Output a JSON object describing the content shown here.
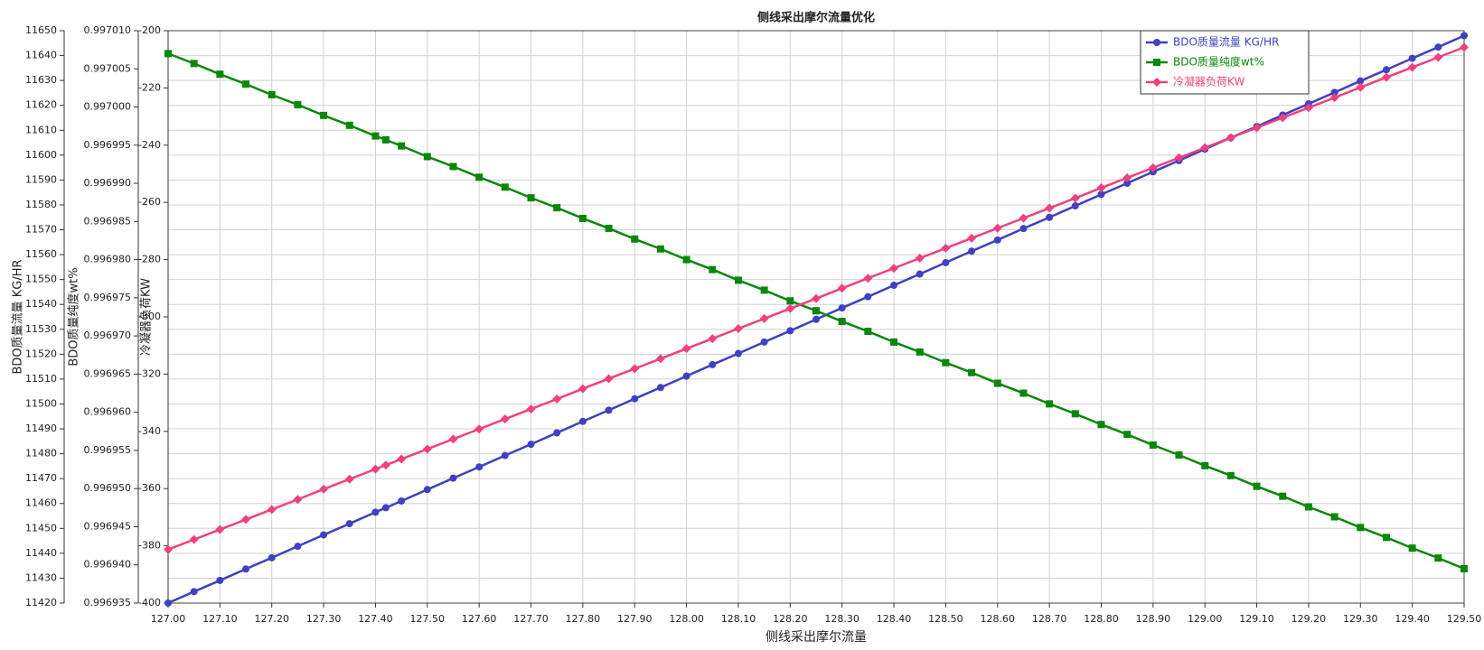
{
  "chart_data": {
    "type": "line",
    "title": "侧线采出摩尔流量优化",
    "xlabel": "侧线采出摩尔流量",
    "x": [
      127.0,
      127.05,
      127.1,
      127.15,
      127.2,
      127.25,
      127.3,
      127.35,
      127.4,
      127.42,
      127.45,
      127.5,
      127.55,
      127.6,
      127.65,
      127.7,
      127.75,
      127.8,
      127.85,
      127.9,
      127.95,
      128.0,
      128.05,
      128.1,
      128.15,
      128.2,
      128.25,
      128.3,
      128.35,
      128.4,
      128.45,
      128.5,
      128.55,
      128.6,
      128.65,
      128.7,
      128.75,
      128.8,
      128.85,
      128.9,
      128.95,
      129.0,
      129.05,
      129.1,
      129.15,
      129.2,
      129.25,
      129.3,
      129.35,
      129.4,
      129.45,
      129.5
    ],
    "series": [
      {
        "name": "BDO质量流量 KG/HR",
        "color": "#4040c0",
        "marker": "circle",
        "axis": "y",
        "axis_label": "BDO质量流量 KG/HR",
        "values": [
          11420.0,
          11424.6,
          11429.1,
          11433.7,
          11438.2,
          11442.8,
          11447.4,
          11451.9,
          11456.5,
          11458.3,
          11461.0,
          11465.6,
          11470.2,
          11474.7,
          11479.3,
          11483.8,
          11488.4,
          11493.0,
          11497.5,
          11502.1,
          11506.6,
          11511.2,
          11515.8,
          11520.3,
          11524.9,
          11529.4,
          11534.0,
          11538.6,
          11543.1,
          11547.7,
          11552.2,
          11556.8,
          11561.4,
          11565.9,
          11570.5,
          11575.0,
          11579.6,
          11584.2,
          11588.7,
          11593.3,
          11597.8,
          11602.4,
          11607.0,
          11611.5,
          11616.1,
          11620.6,
          11625.2,
          11629.8,
          11634.3,
          11638.9,
          11643.4,
          11648.0
        ]
      },
      {
        "name": "BDO质量纯度wt%",
        "color": "#0a870a",
        "marker": "square",
        "axis": "y2",
        "axis_label": "BDO质量纯度wt%",
        "values": [
          0.997007,
          0.9970057,
          0.9970043,
          0.997003,
          0.9970016,
          0.9970003,
          0.9969989,
          0.9969976,
          0.9969962,
          0.9969957,
          0.9969949,
          0.9969935,
          0.9969922,
          0.9969908,
          0.9969895,
          0.9969881,
          0.9969868,
          0.9969854,
          0.9969841,
          0.9969827,
          0.9969814,
          0.99698,
          0.9969787,
          0.9969773,
          0.996976,
          0.9969746,
          0.9969733,
          0.9969719,
          0.9969706,
          0.9969692,
          0.9969679,
          0.9969665,
          0.9969652,
          0.9969638,
          0.9969625,
          0.9969611,
          0.9969598,
          0.9969584,
          0.9969571,
          0.9969557,
          0.9969544,
          0.996953,
          0.9969517,
          0.9969503,
          0.996949,
          0.9969476,
          0.9969463,
          0.9969449,
          0.9969436,
          0.9969422,
          0.9969409,
          0.9969395
        ]
      },
      {
        "name": "冷凝器负荷KW",
        "color": "#f0407f",
        "marker": "diamond",
        "axis": "y3",
        "axis_label": "冷凝器负荷KW",
        "values": [
          -381.3,
          -377.8,
          -374.3,
          -370.8,
          -367.3,
          -363.8,
          -360.2,
          -356.7,
          -353.2,
          -351.8,
          -349.7,
          -346.2,
          -342.7,
          -339.2,
          -335.7,
          -332.2,
          -328.7,
          -325.1,
          -321.6,
          -318.1,
          -314.6,
          -311.1,
          -307.6,
          -304.1,
          -300.6,
          -297.1,
          -293.6,
          -290.0,
          -286.5,
          -283.0,
          -279.5,
          -276.0,
          -272.5,
          -269.0,
          -265.5,
          -262.0,
          -258.5,
          -254.9,
          -251.4,
          -247.9,
          -244.4,
          -240.9,
          -237.4,
          -233.9,
          -230.4,
          -226.9,
          -223.4,
          -219.8,
          -216.3,
          -212.8,
          -209.3,
          -205.8
        ]
      }
    ],
    "xlim": [
      127.0,
      129.5
    ],
    "xticks": [
      {
        "value": 127.0,
        "label": "127.00"
      },
      {
        "value": 127.1,
        "label": "127.10"
      },
      {
        "value": 127.2,
        "label": "127.20"
      },
      {
        "value": 127.3,
        "label": "127.30"
      },
      {
        "value": 127.4,
        "label": "127.40"
      },
      {
        "value": 127.5,
        "label": "127.50"
      },
      {
        "value": 127.6,
        "label": "127.60"
      },
      {
        "value": 127.7,
        "label": "127.70"
      },
      {
        "value": 127.8,
        "label": "127.80"
      },
      {
        "value": 127.9,
        "label": "127.90"
      },
      {
        "value": 128.0,
        "label": "128.00"
      },
      {
        "value": 128.1,
        "label": "128.10"
      },
      {
        "value": 128.2,
        "label": "128.20"
      },
      {
        "value": 128.3,
        "label": "128.30"
      },
      {
        "value": 128.4,
        "label": "128.40"
      },
      {
        "value": 128.5,
        "label": "128.50"
      },
      {
        "value": 128.6,
        "label": "128.60"
      },
      {
        "value": 128.7,
        "label": "128.70"
      },
      {
        "value": 128.8,
        "label": "128.80"
      },
      {
        "value": 128.9,
        "label": "128.90"
      },
      {
        "value": 129.0,
        "label": "129.00"
      },
      {
        "value": 129.1,
        "label": "129.10"
      },
      {
        "value": 129.2,
        "label": "129.20"
      },
      {
        "value": 129.3,
        "label": "129.30"
      },
      {
        "value": 129.4,
        "label": "129.40"
      },
      {
        "value": 129.5,
        "label": "129.50"
      }
    ],
    "ylim": [
      11420,
      11650
    ],
    "yticks": [
      11420,
      11430,
      11440,
      11450,
      11460,
      11470,
      11480,
      11490,
      11500,
      11510,
      11520,
      11530,
      11540,
      11550,
      11560,
      11570,
      11580,
      11590,
      11600,
      11610,
      11620,
      11630,
      11640,
      11650
    ],
    "y2lim": [
      0.996935,
      0.99701
    ],
    "y2ticks": [
      0.996935,
      {
        "value": 0.99694,
        "label": "0.996940"
      },
      0.996945,
      {
        "value": 0.99695,
        "label": "0.996950"
      },
      0.996955,
      {
        "value": 0.99696,
        "label": "0.996960"
      },
      0.996965,
      {
        "value": 0.99697,
        "label": "0.996970"
      },
      0.996975,
      {
        "value": 0.99698,
        "label": "0.996980"
      },
      0.996985,
      {
        "value": 0.99699,
        "label": "0.996990"
      },
      0.996995,
      {
        "value": 0.997,
        "label": "0.997000"
      },
      0.997005,
      {
        "value": 0.99701,
        "label": "0.997010"
      }
    ],
    "y3lim": [
      -400,
      -200
    ],
    "y3ticks": [
      -400,
      -380,
      -360,
      -340,
      -320,
      -300,
      -280,
      -260,
      -240,
      -220,
      -200
    ],
    "grid": true,
    "legend": "upper right"
  }
}
